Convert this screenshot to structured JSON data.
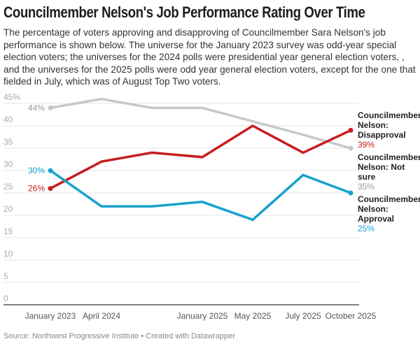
{
  "chart_data": {
    "type": "line",
    "title": "Councilmember Nelson's Job Performance Rating Over Time",
    "subtitle": "The percentage of voters approving and disapproving of Councilmember Sara Nelson's job performance is shown below. The universe for the January 2023 survey was odd-year special election voters; the universes for the 2024 polls were presidential year general election voters, , and the universes for the 2025 polls were odd year general election voters, except for the one that fielded in July, which was of August Top Two voters.",
    "categories": [
      "January 2023",
      "April 2024",
      "",
      "January 2025",
      "May 2025",
      "July 2025",
      "October 2025"
    ],
    "yticks": [
      "0",
      "5",
      "10",
      "15",
      "20",
      "25",
      "30",
      "35",
      "40",
      "45%"
    ],
    "ylim": [
      0,
      45
    ],
    "grid": true,
    "series": [
      {
        "name": "Councilmember Nelson: Not sure",
        "label_lines": [
          "Councilmember",
          "Nelson: Not",
          "sure"
        ],
        "color": "#c8c8c8",
        "label_color": "#999999",
        "values": [
          44,
          46,
          44,
          44,
          41,
          38,
          35
        ],
        "start_label": "44%",
        "end_label": "35%"
      },
      {
        "name": "Councilmember Nelson: Disapproval",
        "label_lines": [
          "Councilmember",
          "Nelson:",
          "Disapproval"
        ],
        "color": "#c71e1d",
        "label_color": "#c71e1d",
        "values": [
          26,
          32,
          34,
          33,
          40,
          34,
          39
        ],
        "start_label": "26%",
        "end_label": "39%"
      },
      {
        "name": "Councilmember Nelson: Approval",
        "label_lines": [
          "Councilmember",
          "Nelson:",
          "Approval"
        ],
        "color": "#18a1cd",
        "label_color": "#18a1cd",
        "values": [
          30,
          22,
          22,
          23,
          19,
          29,
          25
        ],
        "start_label": "30%",
        "end_label": "25%"
      }
    ]
  },
  "footer": {
    "source": "Source: Northwest Progressive Institute • Created with Datawrapper"
  }
}
